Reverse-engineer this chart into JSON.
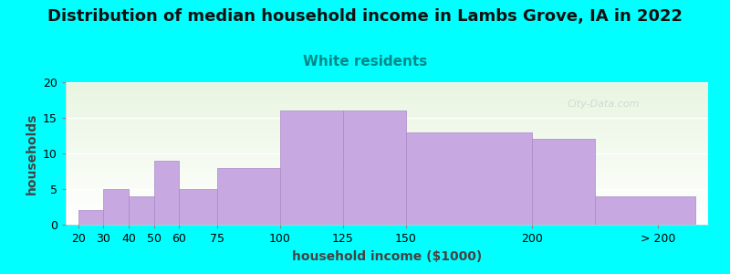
{
  "title": "Distribution of median household income in Lambs Grove, IA in 2022",
  "subtitle": "White residents",
  "xlabel": "household income ($1000)",
  "ylabel": "households",
  "background_color": "#00FFFF",
  "plot_bg_top": "#e8f5e0",
  "plot_bg_bottom": "#ffffff",
  "bar_color": "#c8a8e0",
  "bar_edgecolor": "#a888c8",
  "values": [
    2,
    5,
    4,
    9,
    5,
    8,
    16,
    16,
    13,
    12,
    4
  ],
  "bar_lefts": [
    20,
    30,
    40,
    50,
    60,
    75,
    100,
    125,
    150,
    200,
    225
  ],
  "bar_widths": [
    10,
    10,
    10,
    10,
    15,
    25,
    25,
    25,
    50,
    25,
    40
  ],
  "ylim": [
    0,
    20
  ],
  "yticks": [
    0,
    5,
    10,
    15,
    20
  ],
  "xlim_left": 15,
  "xlim_right": 270,
  "xtick_positions": [
    20,
    30,
    40,
    50,
    60,
    75,
    100,
    125,
    150,
    200,
    250
  ],
  "xtick_labels": [
    "20",
    "30",
    "40",
    "50",
    "60",
    "75",
    "100",
    "125",
    "150",
    "200",
    "> 200"
  ],
  "title_fontsize": 13,
  "subtitle_fontsize": 11,
  "subtitle_color": "#008888",
  "axis_label_fontsize": 10,
  "tick_fontsize": 9,
  "watermark_text": "City-Data.com",
  "watermark_color": "#b8c8c8",
  "watermark_alpha": 0.6
}
